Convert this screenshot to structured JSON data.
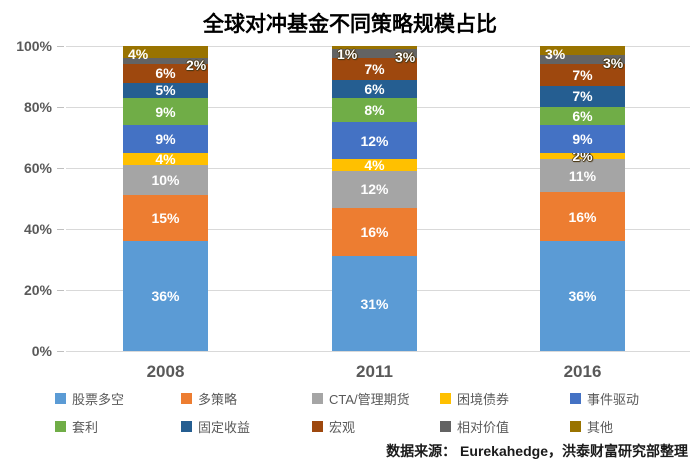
{
  "title": "全球对冲基金不同策略规模占比",
  "source": "数据来源： Eurekahedge，洪泰财富研究部整理",
  "chart_data": {
    "type": "bar",
    "stacked": true,
    "percent_stacked": true,
    "title": "全球对冲基金不同策略规模占比",
    "categories": [
      "2008",
      "2011",
      "2016"
    ],
    "series": [
      {
        "name": "股票多空",
        "color": "#5B9BD5",
        "values": [
          36,
          31,
          36
        ]
      },
      {
        "name": "多策略",
        "color": "#ED7D31",
        "values": [
          15,
          16,
          16
        ]
      },
      {
        "name": "CTA/管理期货",
        "color": "#A5A5A5",
        "values": [
          10,
          12,
          11
        ]
      },
      {
        "name": "困境债券",
        "color": "#FFC000",
        "values": [
          4,
          4,
          2
        ]
      },
      {
        "name": "事件驱动",
        "color": "#4472C4",
        "values": [
          9,
          12,
          9
        ]
      },
      {
        "name": "套利",
        "color": "#70AD47",
        "values": [
          9,
          8,
          6
        ]
      },
      {
        "name": "固定收益",
        "color": "#255E91",
        "values": [
          5,
          6,
          7
        ]
      },
      {
        "name": "宏观",
        "color": "#9E480E",
        "values": [
          6,
          7,
          7
        ]
      },
      {
        "name": "相对价值",
        "color": "#636363",
        "values": [
          2,
          3,
          3
        ]
      },
      {
        "name": "其他",
        "color": "#997300",
        "values": [
          4,
          1,
          3
        ]
      }
    ],
    "y_ticks": [
      "100%",
      "80%",
      "60%",
      "40%",
      "20%",
      "0%"
    ],
    "ylim": [
      0,
      100
    ],
    "grid": true,
    "gridline_color": "#D9D9D9",
    "label_format": "percent",
    "legend_position": "bottom"
  }
}
